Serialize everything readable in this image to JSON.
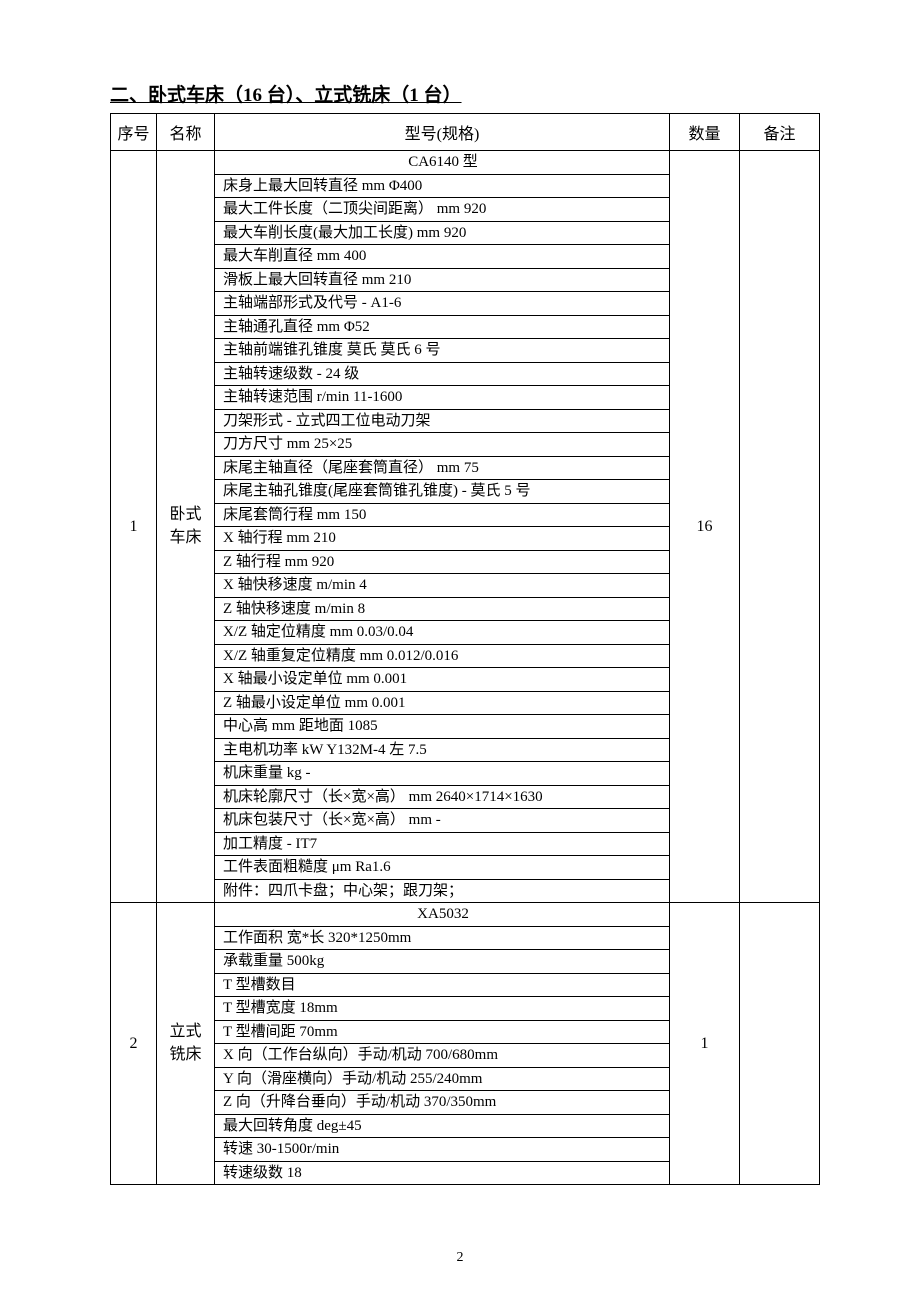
{
  "heading": "二、卧式车床（16 台）、立式铣床（1 台）",
  "columns": {
    "seq": "序号",
    "name": "名称",
    "spec": "型号(规格)",
    "qty": "数量",
    "remark": "备注"
  },
  "rows": [
    {
      "seq": "1",
      "name_l1": "卧式",
      "name_l2": "车床",
      "qty": "16",
      "remark": "",
      "specs": [
        {
          "text": "CA6140 型",
          "center": true
        },
        {
          "text": "床身上最大回转直径 mm Φ400"
        },
        {
          "text": "最大工件长度（二顶尖间距离）  mm 920"
        },
        {
          "text": "最大车削长度(最大加工长度) mm 920"
        },
        {
          "text": "最大车削直径 mm 400"
        },
        {
          "text": "滑板上最大回转直径 mm 210"
        },
        {
          "text": "主轴端部形式及代号 - A1-6"
        },
        {
          "text": "主轴通孔直径 mm Φ52"
        },
        {
          "text": "主轴前端锥孔锥度 莫氏 莫氏 6 号"
        },
        {
          "text": "主轴转速级数 - 24 级"
        },
        {
          "text": "主轴转速范围 r/min 11-1600"
        },
        {
          "text": "刀架形式 - 立式四工位电动刀架"
        },
        {
          "text": "刀方尺寸 mm 25×25"
        },
        {
          "text": "床尾主轴直径（尾座套筒直径）  mm 75"
        },
        {
          "text": "床尾主轴孔锥度(尾座套筒锥孔锥度) - 莫氏 5 号"
        },
        {
          "text": "床尾套筒行程 mm 150"
        },
        {
          "text": "X 轴行程 mm 210"
        },
        {
          "text": "Z 轴行程 mm 920"
        },
        {
          "text": "X 轴快移速度 m/min 4"
        },
        {
          "text": "Z 轴快移速度 m/min 8"
        },
        {
          "text": "X/Z 轴定位精度 mm 0.03/0.04"
        },
        {
          "text": "X/Z 轴重复定位精度 mm 0.012/0.016"
        },
        {
          "text": "X 轴最小设定单位 mm 0.001"
        },
        {
          "text": "Z 轴最小设定单位 mm 0.001"
        },
        {
          "text": "中心高 mm 距地面 1085"
        },
        {
          "text": "主电机功率 kW Y132M-4 左 7.5"
        },
        {
          "text": "机床重量 kg -"
        },
        {
          "text": "机床轮廓尺寸（长×宽×高）  mm 2640×1714×1630"
        },
        {
          "text": "机床包装尺寸（长×宽×高）  mm -"
        },
        {
          "text": "加工精度 - IT7"
        },
        {
          "text": "工件表面粗糙度 μm Ra1.6"
        },
        {
          "text": "  附件：四爪卡盘；中心架；跟刀架；"
        }
      ]
    },
    {
      "seq": "2",
      "name_l1": "立式",
      "name_l2": "铣床",
      "qty": "1",
      "remark": "",
      "specs": [
        {
          "text": "XA5032",
          "center": true
        },
        {
          "text": "工作面积 宽*长 320*1250mm"
        },
        {
          "text": "承载重量 500kg"
        },
        {
          "text": "T 型槽数目"
        },
        {
          "text": "T 型槽宽度 18mm"
        },
        {
          "text": "T 型槽间距 70mm"
        },
        {
          "text": "X 向（工作台纵向）手动/机动 700/680mm"
        },
        {
          "text": "Y 向（滑座横向）手动/机动 255/240mm"
        },
        {
          "text": "Z 向（升降台垂向）手动/机动 370/350mm"
        },
        {
          "text": "最大回转角度 deg±45"
        },
        {
          "text": "转速 30-1500r/min"
        },
        {
          "text": "转速级数 18"
        }
      ]
    }
  ],
  "page_number": "2"
}
